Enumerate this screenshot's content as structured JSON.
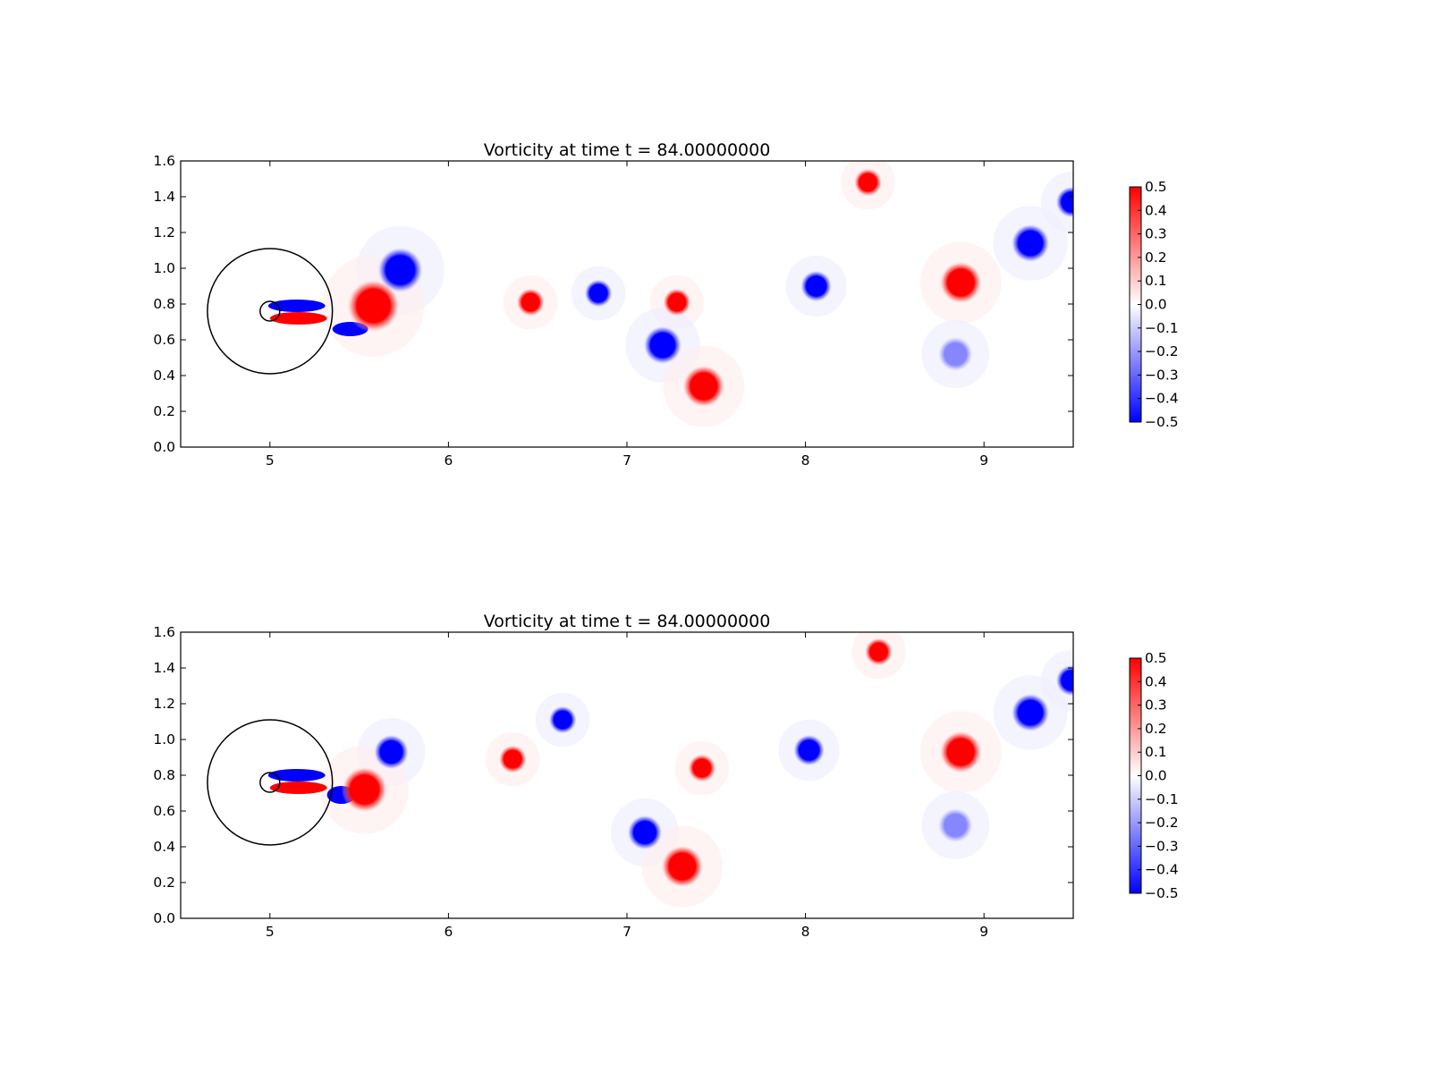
{
  "chart_data": [
    {
      "type": "heatmap",
      "title": "Vorticity at time t =    84.00000000",
      "xlim": [
        4.5,
        9.5
      ],
      "ylim": [
        0.0,
        1.6
      ],
      "xticks": [
        "5",
        "6",
        "7",
        "8",
        "9"
      ],
      "yticks": [
        "0.0",
        "0.2",
        "0.4",
        "0.6",
        "0.8",
        "1.0",
        "1.2",
        "1.4",
        "1.6"
      ],
      "colorbar": {
        "range": [
          -0.5,
          0.5
        ],
        "ticks": [
          "0.5",
          "0.4",
          "0.3",
          "0.2",
          "0.1",
          "0.0",
          "−0.1",
          "−0.2",
          "−0.3",
          "−0.4",
          "−0.5"
        ],
        "colors": {
          "positive": "#ff0000",
          "zero": "#ffffff",
          "negative": "#0000ff"
        }
      },
      "circles": [
        {
          "cx": 5.0,
          "cy": 0.76,
          "r": 0.35
        },
        {
          "cx": 5.0,
          "cy": 0.76,
          "r": 0.055
        }
      ],
      "vortices": [
        {
          "x": 5.73,
          "y": 0.99,
          "w": -1,
          "r": 0.13
        },
        {
          "x": 5.58,
          "y": 0.79,
          "w": 1,
          "r": 0.15
        },
        {
          "x": 6.46,
          "y": 0.81,
          "w": 1,
          "r": 0.08
        },
        {
          "x": 6.84,
          "y": 0.86,
          "w": -1,
          "r": 0.08
        },
        {
          "x": 7.28,
          "y": 0.81,
          "w": 1,
          "r": 0.08
        },
        {
          "x": 7.2,
          "y": 0.57,
          "w": -1,
          "r": 0.11
        },
        {
          "x": 7.43,
          "y": 0.34,
          "w": 1,
          "r": 0.12
        },
        {
          "x": 8.06,
          "y": 0.9,
          "w": -1,
          "r": 0.09
        },
        {
          "x": 8.87,
          "y": 0.92,
          "w": 1,
          "r": 0.12
        },
        {
          "x": 9.26,
          "y": 1.14,
          "w": -1,
          "r": 0.11
        },
        {
          "x": 9.49,
          "y": 1.37,
          "w": -1,
          "r": 0.09
        },
        {
          "x": 8.35,
          "y": 1.48,
          "w": 1,
          "r": 0.08
        },
        {
          "x": 8.84,
          "y": 0.52,
          "w": -0.45,
          "r": 0.1
        }
      ],
      "wake": [
        {
          "x": 5.15,
          "y": 0.79,
          "w": -1,
          "rx": 0.16,
          "ry": 0.035
        },
        {
          "x": 5.16,
          "y": 0.72,
          "w": 1,
          "rx": 0.16,
          "ry": 0.035
        },
        {
          "x": 5.45,
          "y": 0.66,
          "w": -1,
          "rx": 0.1,
          "ry": 0.04
        }
      ]
    },
    {
      "type": "heatmap",
      "title": "Vorticity at time t =    84.00000000",
      "xlim": [
        4.5,
        9.5
      ],
      "ylim": [
        0.0,
        1.6
      ],
      "xticks": [
        "5",
        "6",
        "7",
        "8",
        "9"
      ],
      "yticks": [
        "0.0",
        "0.2",
        "0.4",
        "0.6",
        "0.8",
        "1.0",
        "1.2",
        "1.4",
        "1.6"
      ],
      "colorbar": {
        "range": [
          -0.5,
          0.5
        ],
        "ticks": [
          "0.5",
          "0.4",
          "0.3",
          "0.2",
          "0.1",
          "0.0",
          "−0.1",
          "−0.2",
          "−0.3",
          "−0.4",
          "−0.5"
        ],
        "colors": {
          "positive": "#ff0000",
          "zero": "#ffffff",
          "negative": "#0000ff"
        }
      },
      "circles": [
        {
          "cx": 5.0,
          "cy": 0.76,
          "r": 0.35
        },
        {
          "cx": 5.0,
          "cy": 0.76,
          "r": 0.055
        }
      ],
      "vortices": [
        {
          "x": 5.68,
          "y": 0.93,
          "w": -1,
          "r": 0.1
        },
        {
          "x": 5.53,
          "y": 0.72,
          "w": 1,
          "r": 0.13
        },
        {
          "x": 6.36,
          "y": 0.89,
          "w": 1,
          "r": 0.08
        },
        {
          "x": 6.64,
          "y": 1.11,
          "w": -1,
          "r": 0.08
        },
        {
          "x": 7.42,
          "y": 0.84,
          "w": 1,
          "r": 0.08
        },
        {
          "x": 7.1,
          "y": 0.48,
          "w": -1,
          "r": 0.1
        },
        {
          "x": 7.31,
          "y": 0.29,
          "w": 1,
          "r": 0.12
        },
        {
          "x": 8.02,
          "y": 0.94,
          "w": -1,
          "r": 0.09
        },
        {
          "x": 8.87,
          "y": 0.93,
          "w": 1,
          "r": 0.12
        },
        {
          "x": 9.26,
          "y": 1.15,
          "w": -1,
          "r": 0.11
        },
        {
          "x": 9.49,
          "y": 1.33,
          "w": -1,
          "r": 0.09
        },
        {
          "x": 8.41,
          "y": 1.49,
          "w": 1,
          "r": 0.08
        },
        {
          "x": 8.84,
          "y": 0.52,
          "w": -0.45,
          "r": 0.1
        }
      ],
      "wake": [
        {
          "x": 5.15,
          "y": 0.8,
          "w": -1,
          "rx": 0.16,
          "ry": 0.035
        },
        {
          "x": 5.16,
          "y": 0.73,
          "w": 1,
          "rx": 0.16,
          "ry": 0.035
        },
        {
          "x": 5.4,
          "y": 0.69,
          "w": -1,
          "rx": 0.08,
          "ry": 0.05
        }
      ]
    }
  ]
}
